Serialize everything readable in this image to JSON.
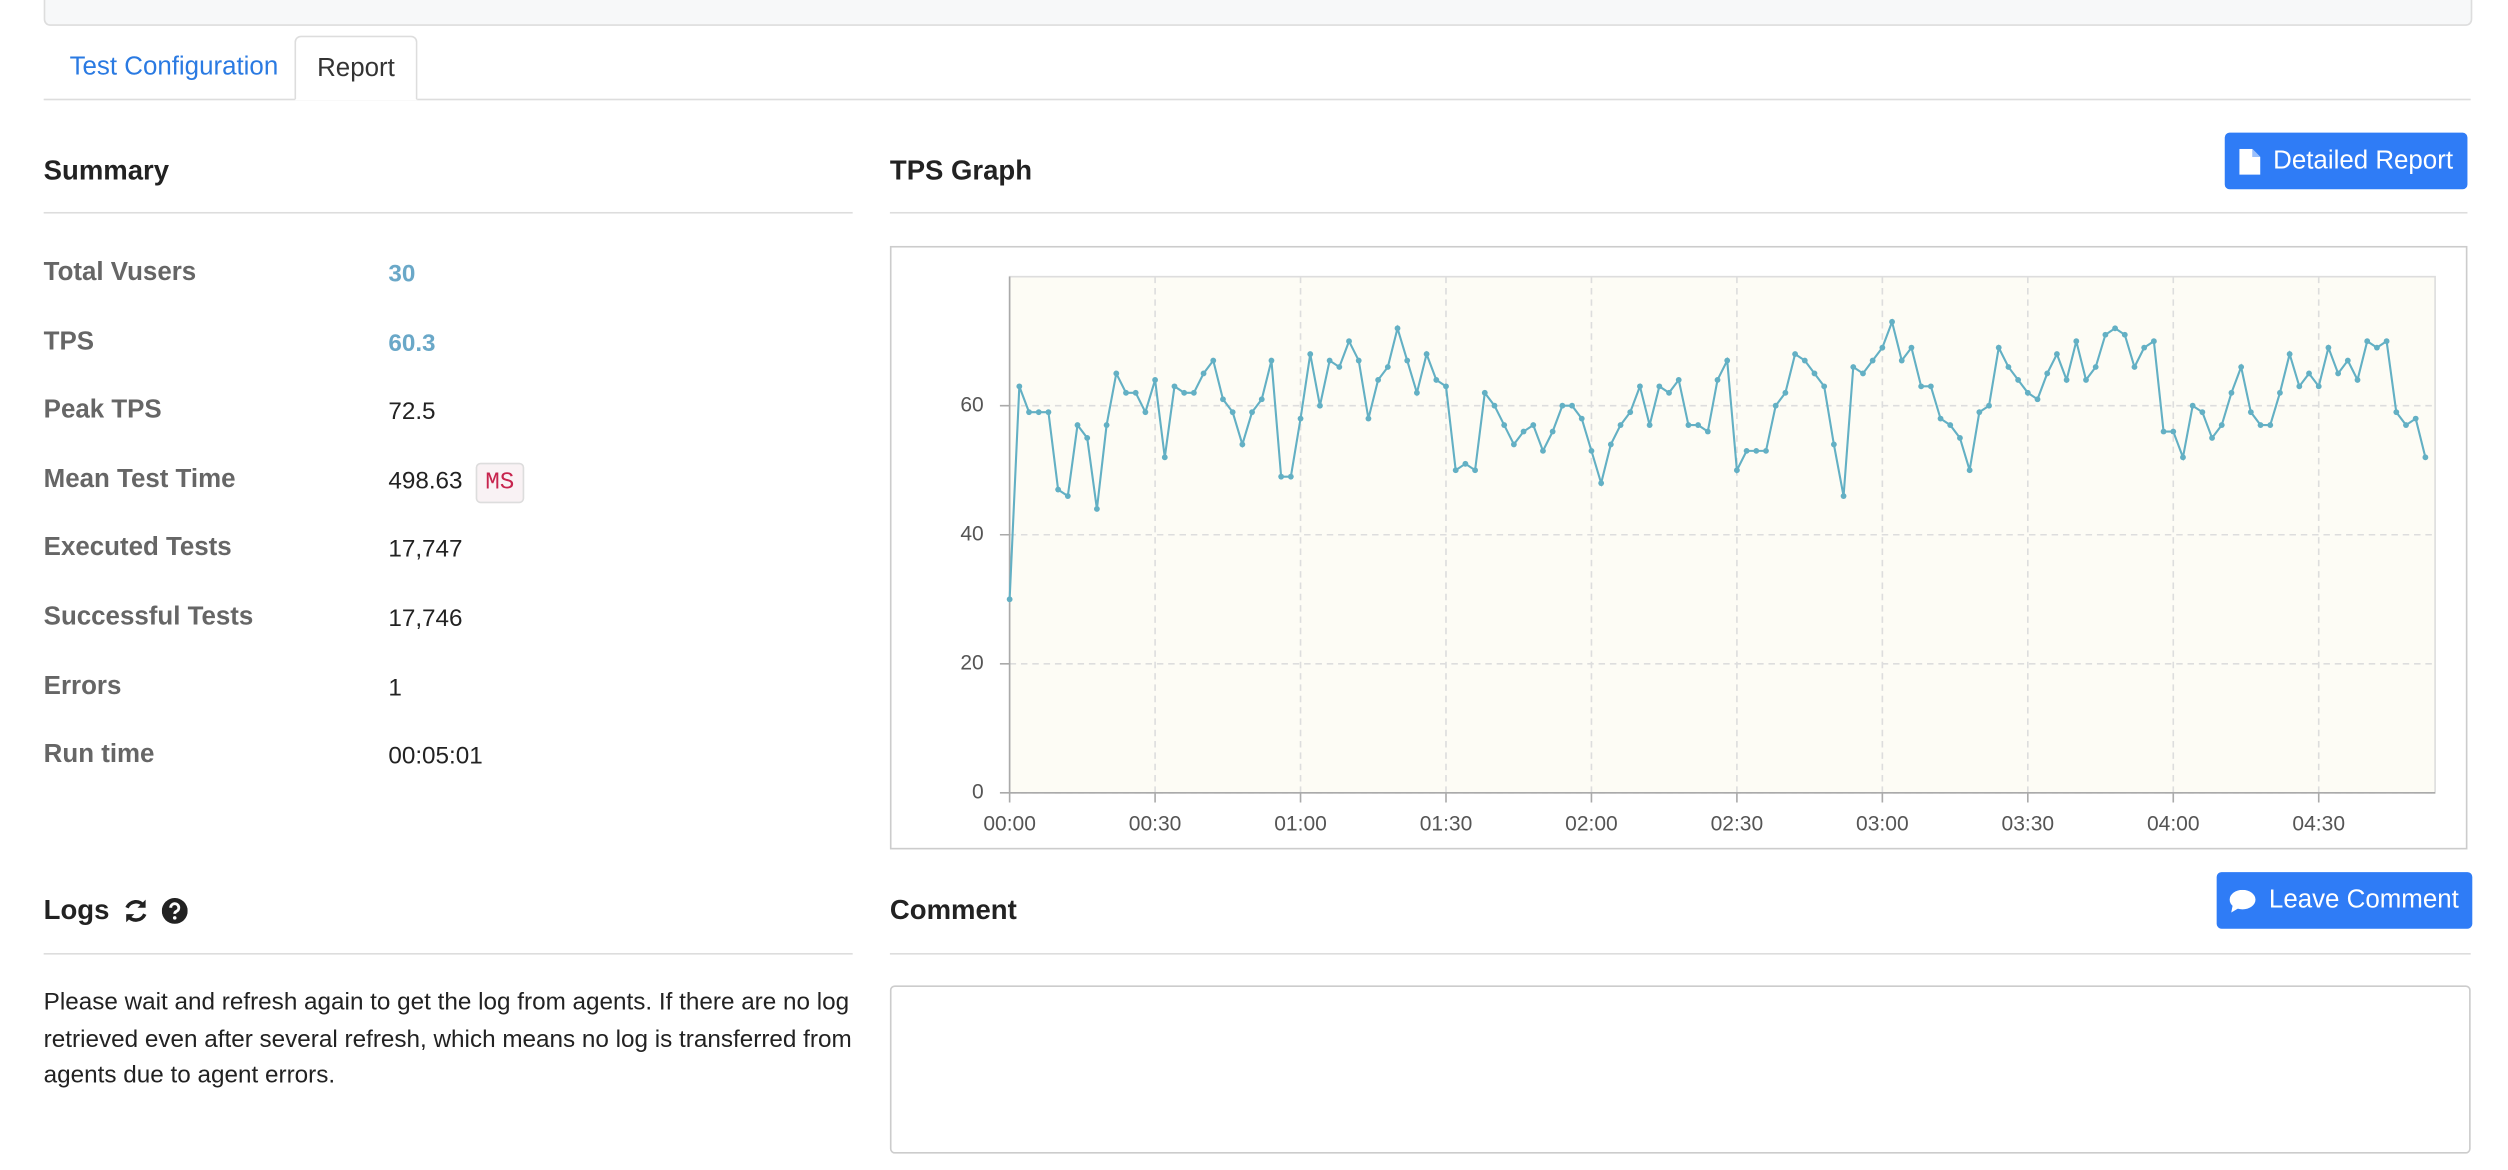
{
  "tabs": [
    "Test Configuration",
    "Report"
  ],
  "summary": {
    "title": "Summary",
    "rows": [
      {
        "label": "Total Vusers",
        "value": "30"
      },
      {
        "label": "TPS",
        "value": "60.3"
      },
      {
        "label": "Peak TPS",
        "value": "72.5"
      },
      {
        "label": "Mean Test Time",
        "value": "498.63",
        "unit": "MS"
      },
      {
        "label": "Executed Tests",
        "value": "17,747"
      },
      {
        "label": "Successful Tests",
        "value": "17,746"
      },
      {
        "label": "Errors",
        "value": "1"
      },
      {
        "label": "Run time",
        "value": "00:05:01"
      }
    ]
  },
  "report_button": "Detailed Report",
  "chart_data": {
    "type": "line",
    "title": "TPS Graph",
    "color": "#63b0c4",
    "grid": true,
    "x": [
      0,
      2,
      4,
      6,
      8,
      10,
      12,
      14,
      16,
      18,
      20,
      22,
      24,
      26,
      28,
      30,
      32,
      34,
      36,
      38,
      40,
      42,
      44,
      46,
      48,
      50,
      52,
      54,
      56,
      58,
      60,
      62,
      64,
      66,
      68,
      70,
      72,
      74,
      76,
      78,
      80,
      82,
      84,
      86,
      88,
      90,
      92,
      94,
      96,
      98,
      100,
      102,
      104,
      106,
      108,
      110,
      112,
      114,
      116,
      118,
      120,
      122,
      124,
      126,
      128,
      130,
      132,
      134,
      136,
      138,
      140,
      142,
      144,
      146,
      148,
      150,
      152,
      154,
      156,
      158,
      160,
      162,
      164,
      166,
      168,
      170,
      172,
      174,
      176,
      178,
      180,
      182,
      184,
      186,
      188,
      190,
      192,
      194,
      196,
      198,
      200,
      202,
      204,
      206,
      208,
      210,
      212,
      214,
      216,
      218,
      220,
      222,
      224,
      226,
      228,
      230,
      232,
      234,
      236,
      238,
      240,
      242,
      244,
      246,
      248,
      250,
      252,
      254,
      256,
      258,
      260,
      262,
      264,
      266,
      268,
      270,
      272,
      274,
      276,
      278,
      280,
      282,
      284,
      286,
      288,
      290,
      292
    ],
    "values": [
      30,
      63,
      59,
      59,
      59,
      47,
      46,
      57,
      55,
      44,
      57,
      65,
      62,
      62,
      59,
      64,
      52,
      63,
      62,
      62,
      65,
      67,
      61,
      59,
      54,
      59,
      61,
      67,
      49,
      49,
      58,
      68,
      60,
      67,
      66,
      70,
      67,
      58,
      64,
      66,
      72,
      67,
      62,
      68,
      64,
      63,
      50,
      51,
      50,
      62,
      60,
      57,
      54,
      56,
      57,
      53,
      56,
      60,
      60,
      58,
      53,
      48,
      54,
      57,
      59,
      63,
      57,
      63,
      62,
      64,
      57,
      57,
      56,
      64,
      67,
      50,
      53,
      53,
      53,
      60,
      62,
      68,
      67,
      65,
      63,
      54,
      46,
      66,
      65,
      67,
      69,
      73,
      67,
      69,
      63,
      63,
      58,
      57,
      55,
      50,
      59,
      60,
      69,
      66,
      64,
      62,
      61,
      65,
      68,
      64,
      70,
      64,
      66,
      71,
      72,
      71,
      66,
      69,
      70,
      56,
      56,
      52,
      60,
      59,
      55,
      57,
      62,
      66,
      59,
      57,
      57,
      62,
      68,
      63,
      65,
      63,
      69,
      65,
      67,
      64,
      70,
      69,
      70,
      59,
      57,
      58,
      52
    ],
    "xlim": [
      0,
      294
    ],
    "xticks": [
      {
        "value": 0,
        "label": "00:00"
      },
      {
        "value": 30,
        "label": "00:30"
      },
      {
        "value": 60,
        "label": "01:00"
      },
      {
        "value": 90,
        "label": "01:30"
      },
      {
        "value": 120,
        "label": "02:00"
      },
      {
        "value": 150,
        "label": "02:30"
      },
      {
        "value": 180,
        "label": "03:00"
      },
      {
        "value": 210,
        "label": "03:30"
      },
      {
        "value": 240,
        "label": "04:00"
      },
      {
        "value": 270,
        "label": "04:30"
      }
    ],
    "ylim": [
      0,
      80
    ],
    "yticks": [
      0,
      20,
      40,
      60
    ]
  },
  "logs": {
    "title": "Logs",
    "text": "Please wait and refresh again to get the log from agents. If there are no log retrieved even after several refresh, which means no log is transferred from agents due to agent errors."
  },
  "comment": {
    "title": "Comment",
    "button": "Leave Comment"
  }
}
